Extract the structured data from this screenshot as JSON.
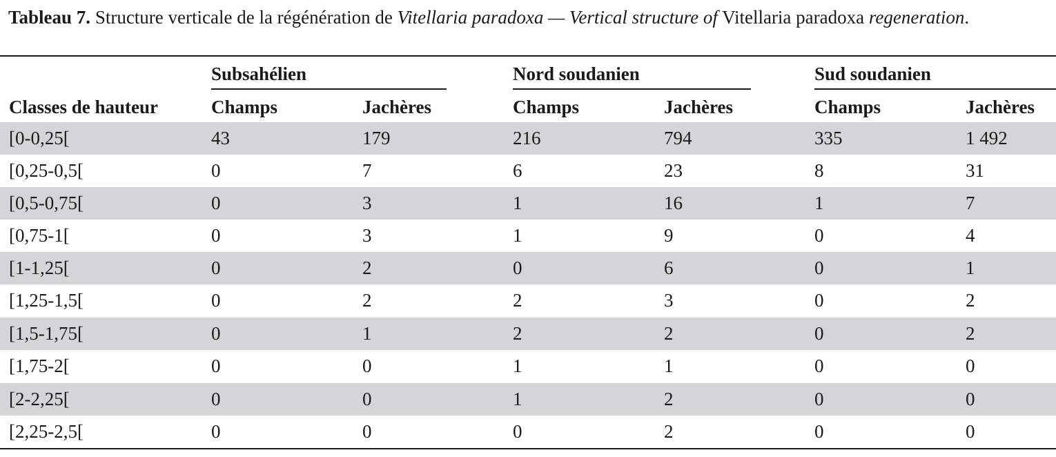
{
  "caption": {
    "label": "Tableau 7.",
    "text_fr": " Structure verticale de la régénération de ",
    "species_fr": "Vitellaria paradoxa",
    "sep": " — ",
    "text_en": "Vertical structure of",
    "species_en": " Vitellaria paradoxa ",
    "text_en_end": "regeneration",
    "end": "."
  },
  "table": {
    "row_header": "Classes de hauteur",
    "groups": [
      "Subsahélien",
      "Nord soudanien",
      "Sud soudanien"
    ],
    "subheaders": [
      "Champs",
      "Jachères",
      "Champs",
      "Jachères",
      "Champs",
      "Jachères"
    ],
    "rows": [
      [
        "[0-0,25[",
        "43",
        "179",
        "216",
        "794",
        "335",
        "1 492"
      ],
      [
        "[0,25-0,5[",
        "0",
        "7",
        "6",
        "23",
        "8",
        "31"
      ],
      [
        "[0,5-0,75[",
        "0",
        "3",
        "1",
        "16",
        "1",
        "7"
      ],
      [
        "[0,75-1[",
        "0",
        "3",
        "1",
        "9",
        "0",
        "4"
      ],
      [
        "[1-1,25[",
        "0",
        "2",
        "0",
        "6",
        "0",
        "1"
      ],
      [
        "[1,25-1,5[",
        "0",
        "2",
        "2",
        "3",
        "0",
        "2"
      ],
      [
        "[1,5-1,75[",
        "0",
        "1",
        "2",
        "2",
        "0",
        "2"
      ],
      [
        "[1,75-2[",
        "0",
        "0",
        "1",
        "1",
        "0",
        "0"
      ],
      [
        "[2-2,25[",
        "0",
        "0",
        "1",
        "2",
        "0",
        "0"
      ],
      [
        "[2,25-2,5[",
        "0",
        "0",
        "0",
        "2",
        "0",
        "0"
      ]
    ]
  },
  "colors": {
    "shade": "#d5d5d7",
    "rule": "#1a1a1a"
  }
}
